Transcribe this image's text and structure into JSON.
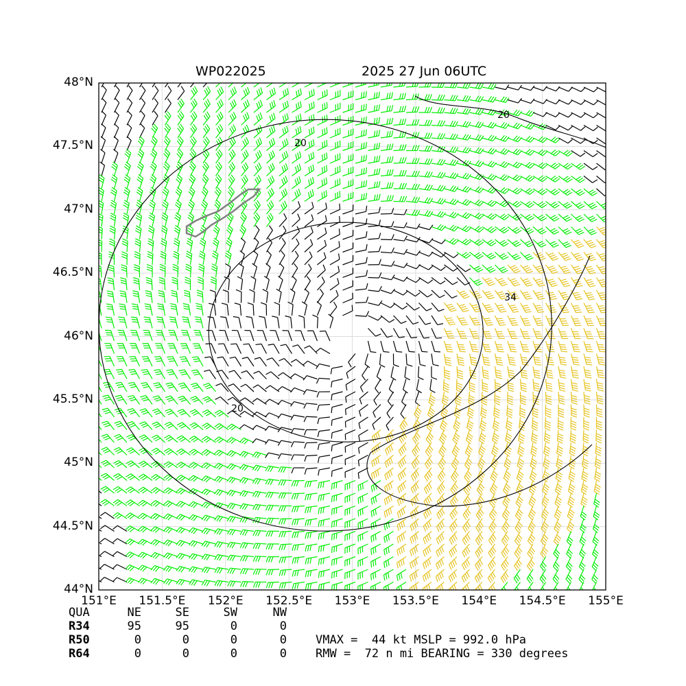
{
  "title": {
    "storm_id": "WP022025",
    "datetime": "2025 27 Jun 06UTC"
  },
  "map": {
    "lon_range": [
      151,
      155
    ],
    "lat_range": [
      44,
      48
    ],
    "x_ticks": [
      "151°E",
      "151.5°E",
      "152°E",
      "152.5°E",
      "153°E",
      "153.5°E",
      "154°E",
      "154.5°E",
      "155°E"
    ],
    "y_ticks": [
      "48°N",
      "47.5°N",
      "47°N",
      "46.5°N",
      "46°N",
      "45.5°N",
      "45°N",
      "44.5°N",
      "44°N"
    ],
    "grid": true,
    "center": {
      "lon": 152.95,
      "lat": 45.98
    },
    "contour_labels": [
      "20",
      "20",
      "20",
      "34"
    ],
    "barb_colors": {
      "calm": "#000000",
      "gale": "#00ee00",
      "storm": "#e6c31f"
    },
    "land_color": "#808080"
  },
  "table": {
    "headers": [
      "QUA",
      "NE",
      "SE",
      "SW",
      "NW"
    ],
    "rows": [
      {
        "label": "R34",
        "values": [
          "95",
          "95",
          "0",
          "0"
        ]
      },
      {
        "label": "R50",
        "values": [
          "0",
          "0",
          "0",
          "0"
        ]
      },
      {
        "label": "R64",
        "values": [
          "0",
          "0",
          "0",
          "0"
        ]
      }
    ],
    "info_line1": "VMAX =  44 kt MSLP = 992.0 hPa",
    "info_line2": "RMW =  72 n mi BEARING = 330 degrees"
  }
}
